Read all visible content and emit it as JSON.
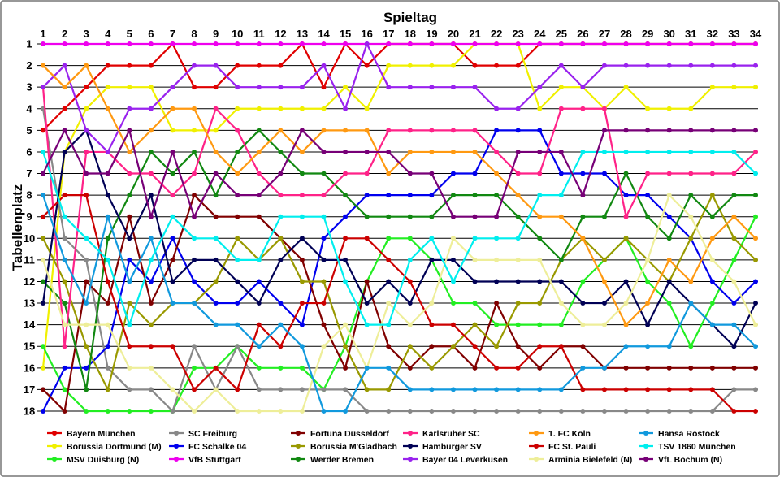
{
  "chart_data": {
    "type": "line",
    "title": "Spieltag",
    "ylabel": "Tabellenplatz",
    "x": [
      1,
      2,
      3,
      4,
      5,
      6,
      7,
      8,
      9,
      10,
      11,
      12,
      13,
      14,
      15,
      16,
      17,
      18,
      19,
      20,
      21,
      22,
      23,
      24,
      25,
      26,
      27,
      28,
      29,
      30,
      31,
      32,
      33,
      34
    ],
    "y_ticks": [
      1,
      2,
      3,
      4,
      5,
      6,
      7,
      8,
      9,
      10,
      11,
      12,
      13,
      14,
      15,
      16,
      17,
      18
    ],
    "ylim": [
      1,
      18
    ],
    "y_inverted": true,
    "grid": true,
    "legend_position": "bottom",
    "series": [
      {
        "name": "Bayern München",
        "color": "#e00000",
        "values": [
          5,
          4,
          3,
          2,
          2,
          2,
          1,
          3,
          3,
          2,
          2,
          2,
          1,
          3,
          1,
          2,
          1,
          1,
          1,
          1,
          2,
          2,
          2,
          1,
          1,
          1,
          1,
          1,
          1,
          1,
          1,
          1,
          1,
          1
        ]
      },
      {
        "name": "Borussia Dortmund (M)",
        "color": "#f0f000",
        "values": [
          16,
          6,
          4,
          3,
          3,
          3,
          5,
          5,
          5,
          4,
          4,
          4,
          4,
          4,
          3,
          4,
          2,
          2,
          2,
          2,
          1,
          1,
          1,
          4,
          3,
          3,
          4,
          3,
          4,
          4,
          4,
          3,
          3,
          3
        ]
      },
      {
        "name": "MSV Duisburg (N)",
        "color": "#22ee22",
        "values": [
          15,
          17,
          18,
          18,
          18,
          18,
          18,
          16,
          16,
          15,
          16,
          16,
          16,
          17,
          15,
          12,
          10,
          10,
          11,
          13,
          13,
          14,
          14,
          14,
          14,
          12,
          11,
          10,
          12,
          13,
          15,
          13,
          11,
          9
        ]
      },
      {
        "name": "SC Freiburg",
        "color": "#888888",
        "values": [
          4,
          10,
          11,
          16,
          17,
          17,
          18,
          15,
          17,
          15,
          17,
          17,
          17,
          17,
          17,
          18,
          18,
          18,
          18,
          18,
          18,
          18,
          18,
          18,
          18,
          18,
          18,
          18,
          18,
          18,
          18,
          18,
          17,
          17
        ]
      },
      {
        "name": "FC Schalke 04",
        "color": "#0000ee",
        "values": [
          18,
          16,
          16,
          15,
          11,
          12,
          10,
          12,
          13,
          13,
          12,
          13,
          14,
          10,
          9,
          8,
          8,
          8,
          8,
          7,
          7,
          5,
          5,
          5,
          7,
          7,
          7,
          8,
          8,
          9,
          10,
          12,
          13,
          12
        ]
      },
      {
        "name": "VfB Stuttgart",
        "color": "#ee00ee",
        "values": [
          1,
          1,
          1,
          1,
          1,
          1,
          1,
          1,
          1,
          1,
          1,
          1,
          1,
          1,
          1,
          1,
          1,
          1,
          1,
          1,
          1,
          1,
          1,
          1,
          1,
          1,
          1,
          1,
          1,
          1,
          1,
          1,
          1,
          1
        ]
      },
      {
        "name": "Fortuna Düsseldorf",
        "color": "#800000",
        "values": [
          17,
          18,
          12,
          13,
          9,
          13,
          11,
          8,
          9,
          9,
          9,
          10,
          11,
          14,
          16,
          12,
          15,
          16,
          15,
          15,
          16,
          13,
          15,
          16,
          15,
          15,
          16,
          16,
          16,
          16,
          16,
          16,
          16,
          16
        ]
      },
      {
        "name": "Borussia M'Gladbach",
        "color": "#999900",
        "values": [
          10,
          12,
          15,
          17,
          13,
          14,
          13,
          13,
          12,
          10,
          11,
          10,
          12,
          12,
          15,
          17,
          17,
          15,
          16,
          15,
          14,
          15,
          13,
          13,
          11,
          10,
          11,
          10,
          11,
          12,
          10,
          8,
          10,
          11
        ]
      },
      {
        "name": "Werder Bremen",
        "color": "#118811",
        "values": [
          12,
          13,
          17,
          10,
          8,
          6,
          7,
          6,
          8,
          6,
          5,
          6,
          7,
          7,
          8,
          9,
          9,
          9,
          9,
          8,
          8,
          8,
          9,
          10,
          11,
          9,
          9,
          7,
          9,
          10,
          8,
          9,
          8,
          8
        ]
      },
      {
        "name": "Karlsruher SC",
        "color": "#ff2288",
        "values": [
          3,
          15,
          6,
          6,
          7,
          7,
          8,
          7,
          4,
          5,
          7,
          8,
          8,
          8,
          7,
          7,
          5,
          5,
          5,
          5,
          5,
          6,
          7,
          7,
          4,
          4,
          4,
          9,
          7,
          7,
          7,
          7,
          7,
          6
        ]
      },
      {
        "name": "Hamburger SV",
        "color": "#000055",
        "values": [
          13,
          6,
          5,
          8,
          10,
          8,
          12,
          11,
          11,
          12,
          13,
          11,
          10,
          11,
          11,
          13,
          12,
          13,
          11,
          11,
          12,
          12,
          12,
          12,
          12,
          13,
          13,
          12,
          14,
          12,
          13,
          14,
          15,
          13
        ]
      },
      {
        "name": "Bayer 04 Leverkusen",
        "color": "#9922ee",
        "values": [
          3,
          2,
          5,
          6,
          4,
          4,
          3,
          2,
          2,
          3,
          3,
          3,
          3,
          2,
          4,
          1,
          3,
          3,
          3,
          3,
          3,
          4,
          4,
          3,
          2,
          3,
          2,
          2,
          2,
          2,
          2,
          2,
          2,
          2
        ]
      },
      {
        "name": "1. FC Köln",
        "color": "#ff9911",
        "values": [
          2,
          3,
          2,
          4,
          6,
          5,
          4,
          4,
          6,
          7,
          6,
          5,
          6,
          5,
          5,
          5,
          7,
          6,
          6,
          6,
          6,
          7,
          8,
          9,
          9,
          10,
          12,
          14,
          13,
          11,
          12,
          10,
          9,
          10
        ]
      },
      {
        "name": "FC St. Pauli",
        "color": "#cc0000",
        "values": [
          9,
          8,
          8,
          12,
          15,
          15,
          15,
          17,
          16,
          17,
          14,
          15,
          13,
          13,
          10,
          10,
          11,
          12,
          14,
          14,
          15,
          16,
          16,
          15,
          15,
          17,
          17,
          17,
          17,
          17,
          17,
          17,
          18,
          18
        ]
      },
      {
        "name": "Arminia Bielefeld (N)",
        "color": "#eeee99",
        "values": [
          11,
          14,
          14,
          14,
          16,
          16,
          17,
          18,
          17,
          18,
          18,
          18,
          18,
          15,
          14,
          16,
          13,
          14,
          13,
          10,
          11,
          11,
          11,
          11,
          13,
          14,
          14,
          13,
          11,
          8,
          9,
          11,
          12,
          14
        ]
      },
      {
        "name": "Hansa Rostock",
        "color": "#1199dd",
        "values": [
          8,
          11,
          13,
          9,
          12,
          10,
          13,
          13,
          14,
          14,
          15,
          14,
          15,
          18,
          18,
          16,
          16,
          17,
          17,
          17,
          17,
          17,
          17,
          17,
          17,
          16,
          16,
          15,
          15,
          15,
          13,
          14,
          14,
          15
        ]
      },
      {
        "name": "TSV 1860 München",
        "color": "#00eeee",
        "values": [
          6,
          9,
          10,
          11,
          14,
          11,
          9,
          10,
          10,
          11,
          11,
          9,
          9,
          9,
          12,
          14,
          14,
          11,
          10,
          12,
          10,
          10,
          10,
          8,
          8,
          6,
          6,
          6,
          6,
          6,
          6,
          6,
          6,
          7
        ]
      },
      {
        "name": "VfL Bochum (N)",
        "color": "#770077",
        "values": [
          7,
          5,
          7,
          7,
          5,
          9,
          6,
          9,
          7,
          8,
          8,
          7,
          5,
          6,
          6,
          6,
          6,
          7,
          7,
          9,
          9,
          9,
          6,
          6,
          6,
          8,
          5,
          5,
          5,
          5,
          5,
          5,
          5,
          5
        ]
      }
    ]
  }
}
